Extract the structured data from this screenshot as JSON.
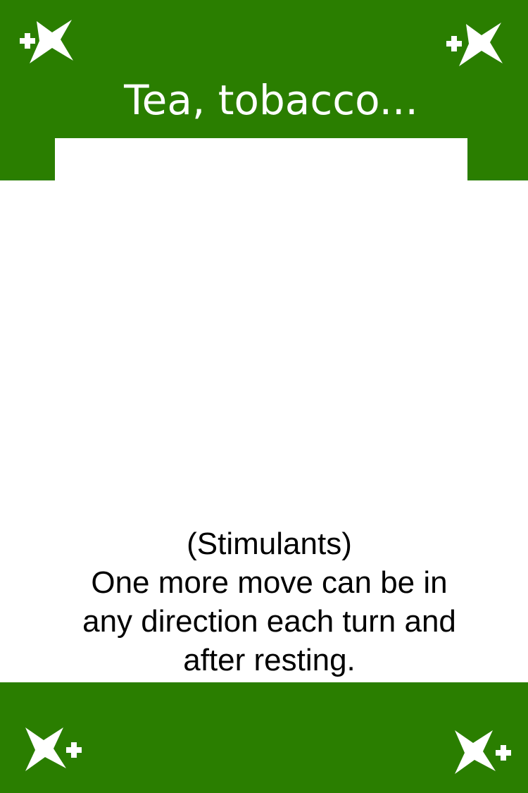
{
  "card": {
    "title": "Tea, tobacco...",
    "subtitle": "(Stimulants)",
    "description_lines": [
      "One more move can be in",
      "any direction each turn and",
      "after resting."
    ],
    "colors": {
      "band": "#2a7e00",
      "background": "#ffffff",
      "title_text": "#ffffff",
      "body_text": "#000000"
    },
    "corner_icons": [
      "sparkle-plus-icon",
      "sparkle-plus-icon",
      "sparkle-plus-icon",
      "sparkle-plus-icon"
    ]
  }
}
